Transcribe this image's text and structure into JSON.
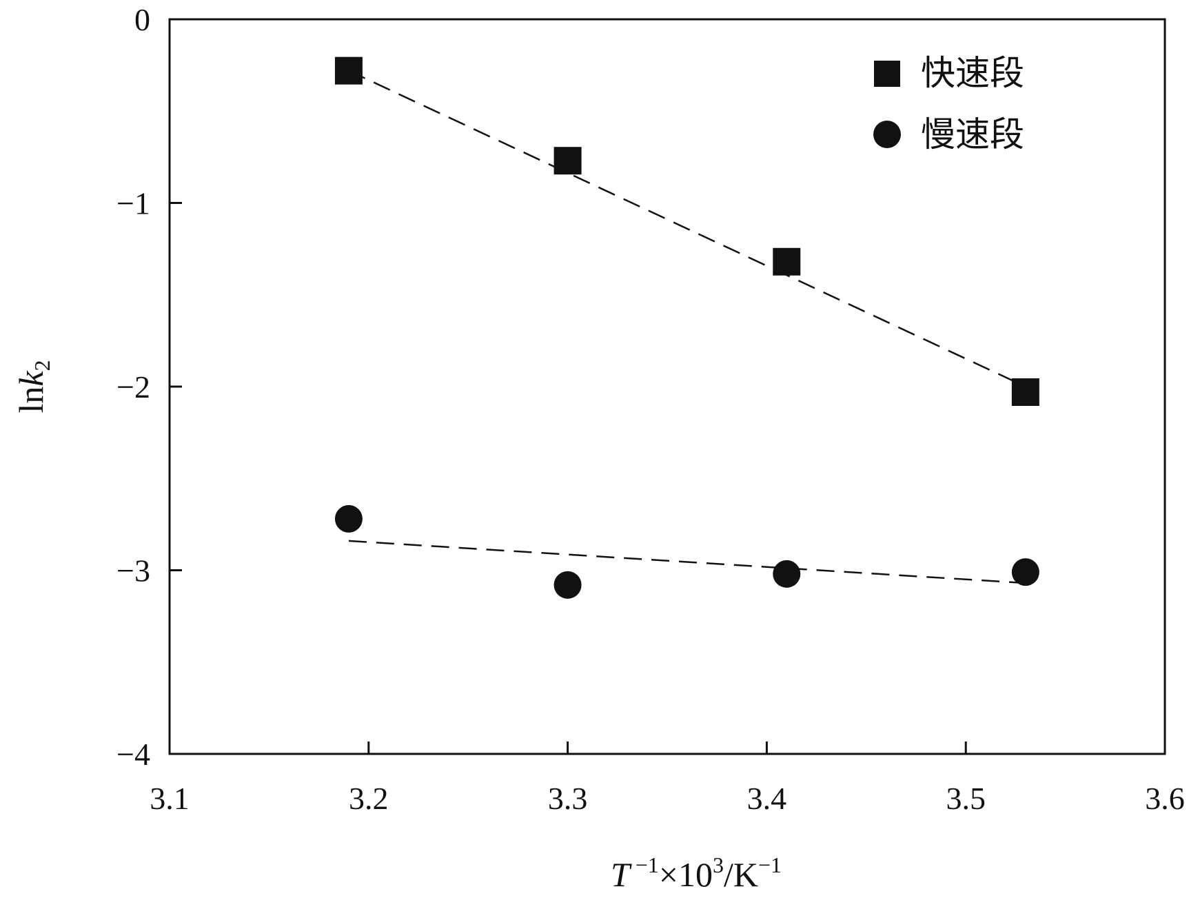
{
  "chart_data": {
    "type": "scatter",
    "xlabel": "T⁻¹×10³/K⁻¹",
    "ylabel": "lnk₂",
    "xlim": [
      3.1,
      3.6
    ],
    "ylim": [
      -4,
      0
    ],
    "x_ticks": [
      "3.1",
      "3.2",
      "3.3",
      "3.4",
      "3.5",
      "3.6"
    ],
    "y_ticks": [
      "0",
      "−1",
      "−2",
      "−3",
      "−4"
    ],
    "grid": false,
    "legend_position": "top-right",
    "series": [
      {
        "name": "快速段",
        "marker": "square",
        "color": "#111111",
        "x": [
          3.19,
          3.3,
          3.41,
          3.53
        ],
        "y": [
          -0.28,
          -0.77,
          -1.32,
          -2.03
        ],
        "fit": {
          "x": [
            3.19,
            3.53
          ],
          "y": [
            -0.28,
            -2.0
          ]
        }
      },
      {
        "name": "慢速段",
        "marker": "circle",
        "color": "#111111",
        "x": [
          3.19,
          3.3,
          3.41,
          3.53
        ],
        "y": [
          -2.72,
          -3.08,
          -3.02,
          -3.01
        ],
        "fit": {
          "x": [
            3.19,
            3.53
          ],
          "y": [
            -2.84,
            -3.07
          ]
        }
      }
    ]
  }
}
